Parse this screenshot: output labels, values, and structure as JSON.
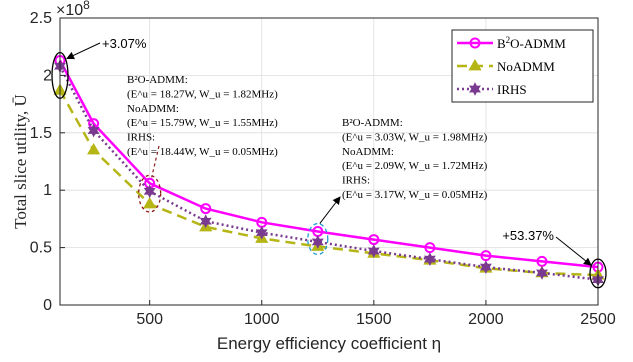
{
  "chart_data": {
    "type": "line",
    "xlabel": "Energy efficiency coefficient η",
    "ylabel": "Total slice utility, Ū",
    "y_exponent_label": "×10",
    "y_exponent_power": "8",
    "xlim": [
      100,
      2500
    ],
    "ylim": [
      0,
      2.5
    ],
    "x_ticks": [
      500,
      1000,
      1500,
      2000,
      2500
    ],
    "x_tick_labels": [
      "500",
      "1000",
      "1500",
      "2000",
      "2500"
    ],
    "y_ticks": [
      0,
      0.5,
      1,
      1.5,
      2,
      2.5
    ],
    "y_tick_labels": [
      "0",
      "0.5",
      "1",
      "1.5",
      "2",
      "2.5"
    ],
    "grid": true,
    "legend_position": "top-right",
    "x": [
      100,
      250,
      500,
      750,
      1000,
      1250,
      1500,
      1750,
      2000,
      2250,
      2500
    ],
    "series": [
      {
        "name": "B²O-ADMM",
        "legend_base": "B",
        "legend_sup": "2",
        "legend_rest": "O-ADMM",
        "color": "#ff00ff",
        "marker": "circle",
        "line_style": "solid",
        "values": [
          2.13,
          1.58,
          1.06,
          0.84,
          0.72,
          0.64,
          0.57,
          0.5,
          0.43,
          0.38,
          0.33
        ]
      },
      {
        "name": "NoADMM",
        "color": "#b5b515",
        "marker": "triangle",
        "line_style": "dashed",
        "values": [
          1.87,
          1.35,
          0.88,
          0.68,
          0.58,
          0.51,
          0.45,
          0.39,
          0.32,
          0.28,
          0.26
        ]
      },
      {
        "name": "IRHS",
        "color": "#7a3a8f",
        "marker": "hexagram",
        "line_style": "dotted",
        "values": [
          2.08,
          1.52,
          0.99,
          0.73,
          0.63,
          0.55,
          0.47,
          0.4,
          0.33,
          0.28,
          0.22
        ]
      }
    ],
    "annotations": [
      {
        "text": "+3.07%"
      },
      {
        "text": "+53.37%"
      }
    ],
    "annotation_blocks": [
      {
        "lines": [
          "B²O-ADMM:",
          "(E^u = 18.27W, W_u = 1.82MHz)",
          "NoADMM:",
          "(E^u = 15.79W, W_u = 1.55MHz)",
          "IRHS:",
          "(E^u = 18.44W, W_u = 0.05MHz)"
        ]
      },
      {
        "lines": [
          "B²O-ADMM:",
          "(E^u = 3.03W, W_u = 1.98MHz)",
          "NoADMM:",
          "(E^u = 2.09W, W_u = 1.72MHz)",
          "IRHS:",
          "(E^u = 3.17W, W_u = 0.05MHz)"
        ]
      }
    ]
  }
}
